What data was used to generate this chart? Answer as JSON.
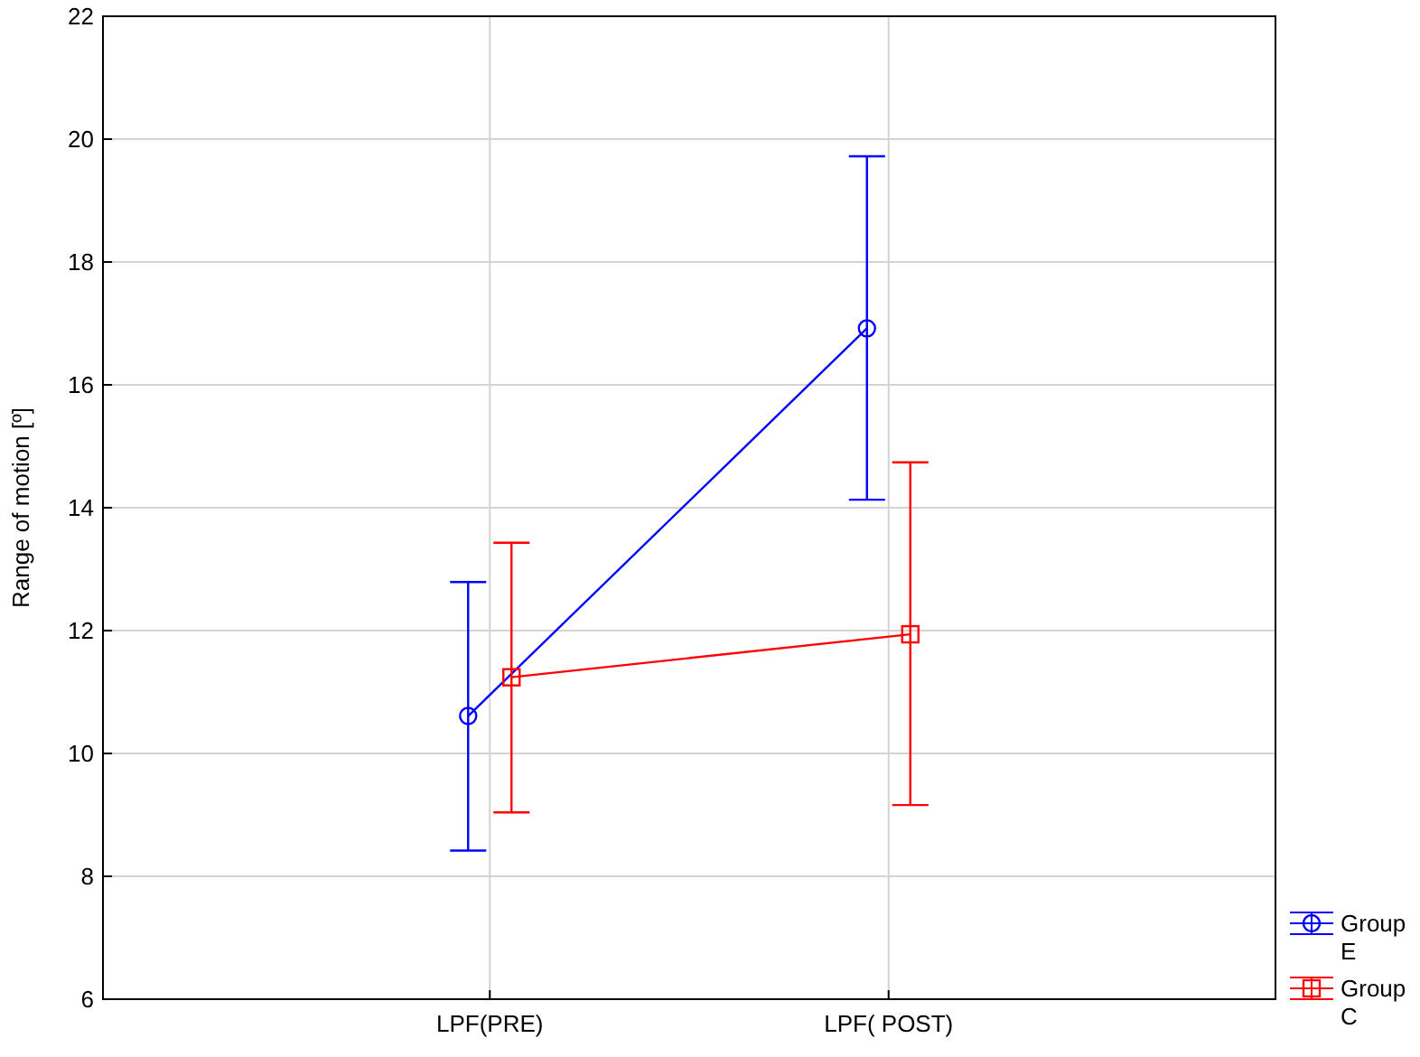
{
  "chart_data": {
    "type": "line",
    "ylabel": "Range of motion [º]",
    "categories": [
      "LPF(PRE)",
      "LPF( POST)"
    ],
    "series": [
      {
        "name": "Group E",
        "color": "#0000ff",
        "marker": "circle",
        "values": [
          10.61,
          16.92
        ],
        "errors": [
          [
            8.42,
            12.79
          ],
          [
            14.13,
            19.72
          ]
        ]
      },
      {
        "name": "Group C",
        "color": "#ff0000",
        "marker": "square",
        "values": [
          11.24,
          11.94
        ],
        "errors": [
          [
            9.04,
            13.43
          ],
          [
            9.16,
            14.74
          ]
        ]
      }
    ],
    "ylim": [
      6,
      22
    ],
    "yticks": [
      6,
      8,
      10,
      12,
      14,
      16,
      18,
      20,
      22
    ],
    "grid": true,
    "legend": "bottom right"
  }
}
